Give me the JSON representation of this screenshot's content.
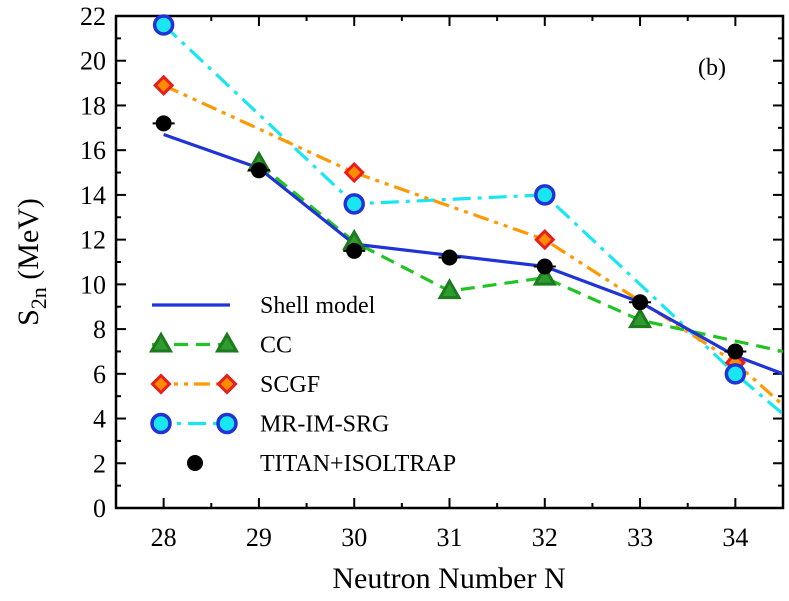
{
  "chart_data": {
    "type": "line",
    "panel_label": "(b)",
    "xlabel": "Neutron Number N",
    "ylabel_main": "S",
    "ylabel_sub": "2n",
    "ylabel_unit": " (MeV)",
    "xlim": [
      27.5,
      34.5
    ],
    "ylim": [
      0,
      22
    ],
    "xticks": [
      28,
      29,
      30,
      31,
      32,
      33,
      34
    ],
    "yticks": [
      0,
      2,
      4,
      6,
      8,
      10,
      12,
      14,
      16,
      18,
      20,
      22
    ],
    "legend_position": "bottom-left",
    "series": [
      {
        "key": "shell",
        "name": "Shell model",
        "color": "#1f33d6",
        "style": "solid",
        "marker": "none",
        "x": [
          28,
          29,
          30,
          31,
          32,
          33,
          34,
          34.5
        ],
        "y": [
          16.7,
          15.2,
          11.8,
          11.3,
          10.8,
          9.2,
          6.8,
          6.0
        ]
      },
      {
        "key": "cc",
        "name": "CC",
        "color": "#22c322",
        "marker_fill": "#2e9b2e",
        "marker_stroke": "#1f7a1f",
        "style": "dash",
        "marker": "triangle",
        "x": [
          29,
          30,
          31,
          32,
          33,
          34.5
        ],
        "y": [
          15.4,
          11.9,
          9.7,
          10.3,
          8.4,
          7.0
        ],
        "marker_x": [
          29,
          30,
          31,
          32,
          33
        ]
      },
      {
        "key": "scgf",
        "name": "SCGF",
        "color": "#ff9900",
        "marker_fill": "#ff8c00",
        "marker_stroke": "#e81e1e",
        "style": "dashdotdot",
        "marker": "diamond",
        "x": [
          28,
          30,
          32,
          34,
          34.5
        ],
        "y": [
          18.9,
          15.0,
          12.0,
          6.5,
          4.6
        ],
        "marker_x": [
          28,
          30,
          32,
          34
        ]
      },
      {
        "key": "mrimsrg",
        "name": "MR-IM-SRG",
        "color": "#19e6f0",
        "marker_fill": "#19e6f0",
        "marker_stroke": "#1f33d6",
        "style": "dashdot",
        "marker": "circle",
        "x": [
          28,
          30,
          32,
          34,
          34.5
        ],
        "y": [
          21.6,
          13.6,
          14.0,
          6.0,
          4.2
        ],
        "marker_x": [
          28,
          30,
          32,
          34
        ]
      },
      {
        "key": "exp",
        "name": "TITAN+ISOLTRAP",
        "color": "#000000",
        "marker_fill": "#000000",
        "style": "none",
        "marker": "dot",
        "x": [
          28,
          29,
          30,
          31,
          32,
          33,
          34
        ],
        "y": [
          17.2,
          15.1,
          11.5,
          11.2,
          10.8,
          9.2,
          7.0
        ],
        "marker_x": [
          28,
          29,
          30,
          31,
          32,
          33,
          34
        ]
      }
    ]
  }
}
